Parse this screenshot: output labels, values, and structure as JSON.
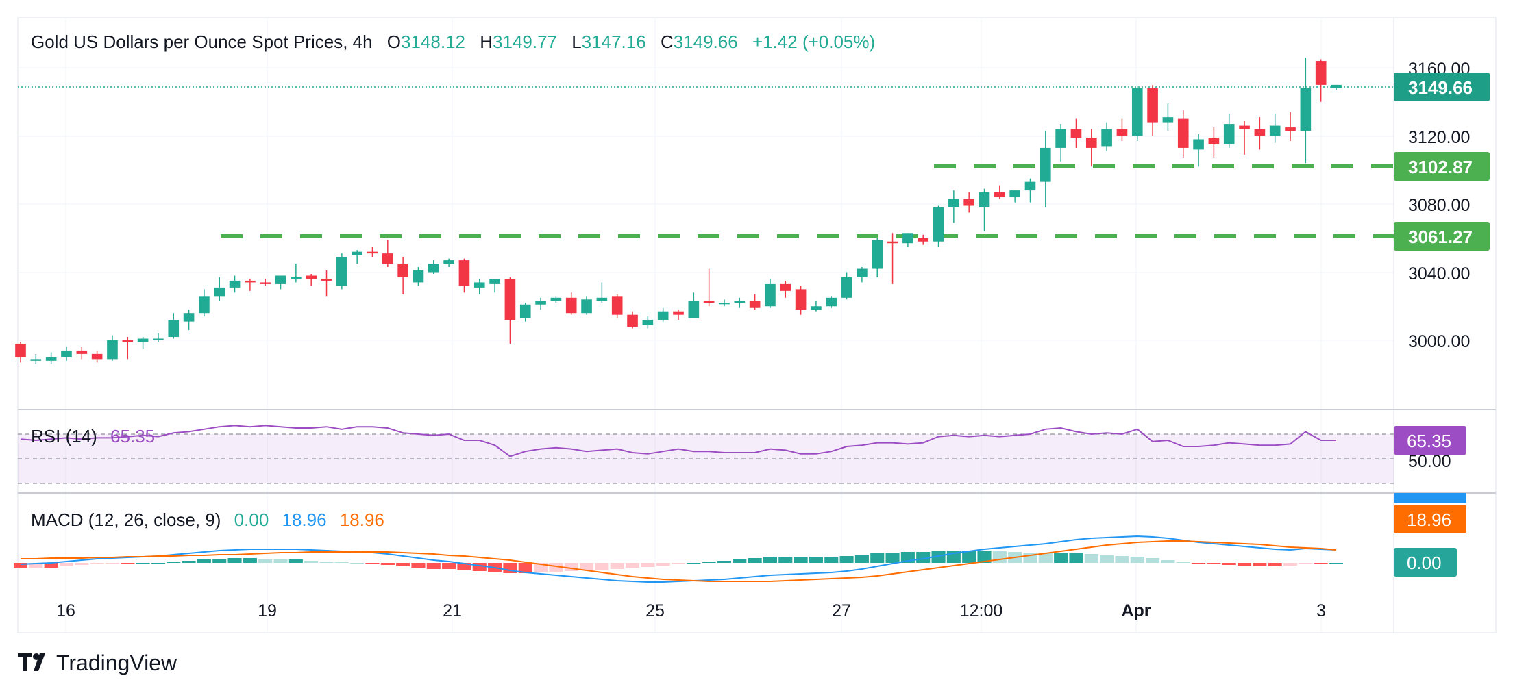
{
  "header": {
    "title": "Gold US Dollars per Ounce Spot Prices, 4h",
    "o_label": "O",
    "o_value": "3148.12",
    "h_label": "H",
    "h_value": "3149.77",
    "l_label": "L",
    "l_value": "3147.16",
    "c_label": "C",
    "c_value": "3149.66",
    "change": "+1.42 (+0.05%)"
  },
  "price_axis": {
    "ticks": [
      "3160.00",
      "3120.00",
      "3080.00",
      "3040.00",
      "3000.00"
    ],
    "last_price_badge": "3149.66",
    "level_badges": [
      "3102.87",
      "3061.27"
    ]
  },
  "rsi": {
    "label": "RSI (14)",
    "value": "65.35",
    "badge": "65.35",
    "axis_label": "50.00"
  },
  "macd": {
    "label": "MACD (12, 26, close, 9)",
    "hist_value": "0.00",
    "macd_value": "18.96",
    "signal_value": "18.96",
    "signal_badge": "18.96",
    "hist_badge": "0.00"
  },
  "time_axis": {
    "labels": [
      "16",
      "19",
      "21",
      "25",
      "27",
      "12:00",
      "Apr",
      "3"
    ]
  },
  "branding": {
    "name": "TradingView"
  },
  "colors": {
    "up": "#22ab94",
    "down": "#f23645",
    "dash_level": "#4caf50",
    "rsi": "#9c4dc4",
    "macd_line": "#2196f3",
    "signal_line": "#ff6d00",
    "hist_up_strong": "#26a69a",
    "hist_up_weak": "#b2dfdb",
    "hist_down_strong": "#ff5252",
    "hist_down_weak": "#ffcdd2"
  },
  "chart_data": {
    "type": "candlestick",
    "interval": "4h",
    "y_range": [
      2980,
      3172
    ],
    "support_levels": [
      3102.87,
      3061.27
    ],
    "candles": [
      [
        2998,
        2999,
        2987,
        2990
      ],
      [
        2988,
        2992,
        2986,
        2989
      ],
      [
        2988,
        2993,
        2986,
        2990
      ],
      [
        2990,
        2996,
        2988,
        2994
      ],
      [
        2994,
        2996,
        2989,
        2992
      ],
      [
        2992,
        2994,
        2987,
        2989
      ],
      [
        2989,
        3003,
        2988,
        3000
      ],
      [
        3000,
        3002,
        2989,
        2999
      ],
      [
        2999,
        3002,
        2995,
        3001
      ],
      [
        3001,
        3004,
        2999,
        3001
      ],
      [
        3002,
        3016,
        3001,
        3012
      ],
      [
        3011,
        3018,
        3006,
        3016
      ],
      [
        3016,
        3030,
        3014,
        3026
      ],
      [
        3026,
        3037,
        3023,
        3031
      ],
      [
        3031,
        3038,
        3028,
        3035
      ],
      [
        3035,
        3036,
        3029,
        3034
      ],
      [
        3034,
        3036,
        3032,
        3033
      ],
      [
        3033,
        3038,
        3030,
        3038
      ],
      [
        3037,
        3045,
        3034,
        3037
      ],
      [
        3038,
        3039,
        3032,
        3036
      ],
      [
        3036,
        3041,
        3026,
        3035
      ],
      [
        3032,
        3051,
        3030,
        3049
      ],
      [
        3050,
        3053,
        3045,
        3052
      ],
      [
        3052,
        3055,
        3049,
        3051
      ],
      [
        3051,
        3059,
        3043,
        3045
      ],
      [
        3045,
        3049,
        3027,
        3037
      ],
      [
        3034,
        3043,
        3032,
        3041
      ],
      [
        3040,
        3047,
        3039,
        3045
      ],
      [
        3045,
        3048,
        3043,
        3047
      ],
      [
        3047,
        3048,
        3028,
        3032
      ],
      [
        3031,
        3036,
        3027,
        3034
      ],
      [
        3033,
        3036,
        3028,
        3036
      ],
      [
        3036,
        3037,
        2998,
        3012
      ],
      [
        3013,
        3022,
        3011,
        3021
      ],
      [
        3021,
        3025,
        3018,
        3023
      ],
      [
        3023,
        3026,
        3022,
        3025
      ],
      [
        3025,
        3028,
        3015,
        3016
      ],
      [
        3016,
        3026,
        3015,
        3024
      ],
      [
        3023,
        3034,
        3022,
        3025
      ],
      [
        3026,
        3027,
        3013,
        3015
      ],
      [
        3015,
        3017,
        3007,
        3008
      ],
      [
        3009,
        3014,
        3007,
        3012
      ],
      [
        3012,
        3019,
        3011,
        3017
      ],
      [
        3017,
        3018,
        3012,
        3015
      ],
      [
        3013,
        3028,
        3013,
        3023
      ],
      [
        3023,
        3042,
        3020,
        3022
      ],
      [
        3022,
        3024,
        3020,
        3022
      ],
      [
        3022,
        3025,
        3019,
        3023
      ],
      [
        3023,
        3027,
        3018,
        3019
      ],
      [
        3020,
        3036,
        3019,
        3033
      ],
      [
        3033,
        3035,
        3025,
        3029
      ],
      [
        3030,
        3032,
        3015,
        3018
      ],
      [
        3018,
        3023,
        3017,
        3020
      ],
      [
        3020,
        3026,
        3019,
        3025
      ],
      [
        3025,
        3040,
        3024,
        3037
      ],
      [
        3037,
        3043,
        3034,
        3042
      ],
      [
        3042,
        3060,
        3037,
        3059
      ],
      [
        3058,
        3063,
        3033,
        3057
      ],
      [
        3057,
        3063,
        3055,
        3063
      ],
      [
        3060,
        3062,
        3056,
        3058
      ],
      [
        3058,
        3079,
        3055,
        3078
      ],
      [
        3078,
        3088,
        3069,
        3083
      ],
      [
        3083,
        3087,
        3075,
        3079
      ],
      [
        3078,
        3089,
        3064,
        3087
      ],
      [
        3087,
        3091,
        3083,
        3084
      ],
      [
        3084,
        3088,
        3081,
        3088
      ],
      [
        3088,
        3095,
        3081,
        3093
      ],
      [
        3093,
        3123,
        3078,
        3113
      ],
      [
        3113,
        3127,
        3105,
        3124
      ],
      [
        3124,
        3130,
        3113,
        3119
      ],
      [
        3119,
        3124,
        3102,
        3113
      ],
      [
        3114,
        3128,
        3111,
        3124
      ],
      [
        3124,
        3130,
        3117,
        3120
      ],
      [
        3120,
        3149,
        3117,
        3148
      ],
      [
        3148,
        3150,
        3120,
        3128
      ],
      [
        3128,
        3139,
        3123,
        3131
      ],
      [
        3130,
        3135,
        3107,
        3113
      ],
      [
        3112,
        3121,
        3102,
        3118
      ],
      [
        3119,
        3125,
        3107,
        3115
      ],
      [
        3115,
        3133,
        3113,
        3127
      ],
      [
        3126,
        3129,
        3109,
        3124
      ],
      [
        3124,
        3131,
        3112,
        3120
      ],
      [
        3120,
        3133,
        3116,
        3126
      ],
      [
        3125,
        3134,
        3117,
        3123
      ],
      [
        3123,
        3166,
        3104,
        3148
      ],
      [
        3164,
        3165,
        3140,
        3150
      ],
      [
        3148,
        3150,
        3147,
        3150
      ]
    ],
    "rsi_values": [
      66,
      65,
      66,
      67,
      66,
      67,
      67,
      68,
      69,
      68,
      71,
      72,
      74,
      76,
      77,
      76,
      77,
      76,
      75,
      75,
      76,
      74,
      76,
      76,
      75,
      71,
      70,
      69,
      70,
      65,
      65,
      61,
      52,
      56,
      58,
      59,
      58,
      56,
      57,
      58,
      55,
      54,
      56,
      58,
      56,
      56,
      55,
      55,
      55,
      58,
      57,
      54,
      54,
      56,
      60,
      61,
      63,
      63,
      62,
      63,
      68,
      69,
      68,
      69,
      68,
      69,
      70,
      74,
      75,
      72,
      70,
      71,
      70,
      74,
      64,
      65,
      60,
      60,
      61,
      63,
      62,
      61,
      61,
      62,
      72,
      65,
      65
    ],
    "macd_line": [
      -2,
      -1,
      0,
      2,
      4,
      6,
      7,
      8,
      9,
      10,
      12,
      14,
      16,
      18,
      19,
      20,
      20,
      20,
      20,
      19,
      18,
      17,
      16,
      15,
      13,
      10,
      7,
      4,
      2,
      -1,
      -4,
      -7,
      -11,
      -14,
      -16,
      -18,
      -20,
      -22,
      -24,
      -26,
      -27,
      -28,
      -28,
      -27,
      -26,
      -25,
      -24,
      -22,
      -20,
      -18,
      -17,
      -16,
      -15,
      -14,
      -12,
      -9,
      -5,
      -1,
      3,
      6,
      10,
      14,
      17,
      20,
      22,
      24,
      26,
      28,
      31,
      34,
      36,
      37,
      38,
      39,
      38,
      36,
      33,
      30,
      28,
      26,
      24,
      22,
      20,
      19,
      21,
      20,
      19
    ],
    "signal_line": [
      6,
      6,
      7,
      7,
      7,
      8,
      8,
      9,
      9,
      10,
      10,
      11,
      11,
      12,
      12,
      13,
      14,
      15,
      15,
      16,
      16,
      16,
      16,
      16,
      16,
      15,
      14,
      13,
      11,
      10,
      8,
      6,
      4,
      1,
      -2,
      -5,
      -8,
      -11,
      -14,
      -17,
      -20,
      -22,
      -24,
      -25,
      -26,
      -27,
      -27,
      -27,
      -27,
      -27,
      -26,
      -25,
      -24,
      -23,
      -22,
      -21,
      -19,
      -16,
      -13,
      -10,
      -7,
      -4,
      -1,
      2,
      5,
      8,
      11,
      14,
      17,
      20,
      23,
      26,
      28,
      30,
      31,
      32,
      32,
      31,
      30,
      29,
      28,
      27,
      25,
      23,
      22,
      21,
      19
    ],
    "histogram": [
      -8,
      -7,
      -7,
      -5,
      -3,
      -2,
      -1,
      -1,
      0,
      0,
      2,
      3,
      5,
      6,
      7,
      7,
      6,
      5,
      5,
      3,
      2,
      1,
      0,
      -1,
      -3,
      -5,
      -7,
      -9,
      -9,
      -11,
      -12,
      -13,
      -15,
      -15,
      -14,
      -13,
      -12,
      -11,
      -10,
      -9,
      -7,
      -6,
      -4,
      -2,
      0,
      2,
      3,
      5,
      7,
      9,
      9,
      9,
      9,
      9,
      10,
      12,
      14,
      15,
      16,
      16,
      17,
      18,
      18,
      18,
      17,
      16,
      15,
      14,
      14,
      14,
      13,
      11,
      10,
      9,
      7,
      4,
      1,
      -1,
      -2,
      -3,
      -4,
      -5,
      -5,
      -4,
      -1,
      -1,
      0
    ]
  }
}
